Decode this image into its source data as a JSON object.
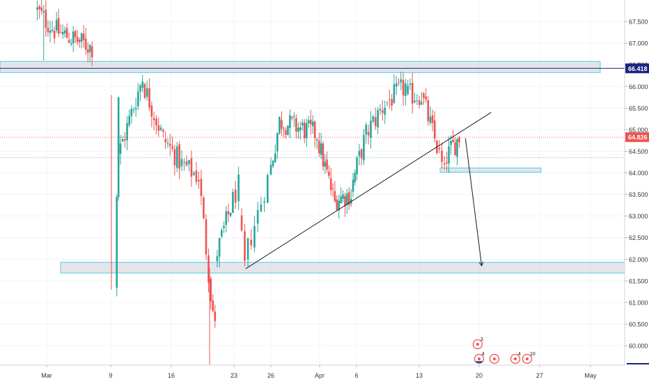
{
  "chart_data": {
    "type": "candlestick",
    "symbol_price_tags": {
      "resistance_level": "66.418",
      "last_price": "64.826"
    },
    "y_axis": {
      "ylim": [
        59.55,
        68.0
      ],
      "ticks": [
        "67.500",
        "67.000",
        "66.500",
        "66.000",
        "65.500",
        "65.000",
        "64.500",
        "64.000",
        "63.500",
        "63.000",
        "62.500",
        "62.000",
        "61.500",
        "61.000",
        "60.500",
        "60.000"
      ]
    },
    "x_axis": {
      "labels": [
        "Mar",
        "9",
        "16",
        "23",
        "26",
        "Apr",
        "6",
        "13",
        "20",
        "27",
        "May"
      ]
    },
    "levels": {
      "resistance_zone": [
        66.32,
        66.58
      ],
      "resistance_line": 66.418,
      "support_zone_small": [
        64.02,
        64.08
      ],
      "support_zone_big": [
        61.68,
        61.93
      ],
      "last_price_line": 64.826,
      "dotted_line": 64.35
    },
    "annotations": {
      "trendline": {
        "from": {
          "day": 22.95,
          "price": 61.78
        },
        "to": {
          "day": 51.4,
          "price": 65.4
        }
      },
      "arrow": {
        "from": {
          "day": 48.4,
          "price": 64.8
        },
        "to": {
          "day": 50.3,
          "price": 61.85
        }
      }
    },
    "event_markers": {
      "labels": [
        "3",
        "4",
        "4",
        "10"
      ]
    },
    "series": {
      "segments": [
        {
          "start_day": -1.3,
          "end_day": 1.1,
          "start": 67.8,
          "end": 67.3,
          "low_spike": 66.6,
          "low_idx": 0.4
        },
        {
          "start_day": 1.1,
          "end_day": 5.8,
          "start": 67.3,
          "end": 66.9
        },
        {
          "start_day": 8.6,
          "end_day": 9.0,
          "start": 61.3,
          "end": 65.8
        },
        {
          "start_day": 9.0,
          "end_day": 11.8,
          "start": 64.4,
          "end": 66.2
        },
        {
          "start_day": 11.8,
          "end_day": 14.2,
          "start": 66.1,
          "end": 64.8
        },
        {
          "start_day": 14.2,
          "end_day": 16.3,
          "start": 64.8,
          "end": 64.2
        },
        {
          "start_day": 16.3,
          "end_day": 18.2,
          "start": 64.2,
          "end": 63.9
        },
        {
          "start_day": 18.2,
          "end_day": 19.3,
          "start": 63.9,
          "end": 61.7
        },
        {
          "start_day": 19.3,
          "end_day": 20.0,
          "start": 61.6,
          "end": 60.4
        },
        {
          "start_day": 20.0,
          "end_day": 22.5,
          "start": 62.0,
          "end": 63.7
        },
        {
          "start_day": 22.5,
          "end_day": 23.0,
          "start": 63.0,
          "end": 61.8
        },
        {
          "start_day": 23.0,
          "end_day": 26.2,
          "start": 62.0,
          "end": 65.2
        },
        {
          "start_day": 26.2,
          "end_day": 30.8,
          "start": 65.2,
          "end": 64.9
        },
        {
          "start_day": 30.8,
          "end_day": 33.2,
          "start": 64.8,
          "end": 63.3
        },
        {
          "start_day": 33.2,
          "end_day": 35.4,
          "start": 63.4,
          "end": 63.5
        },
        {
          "start_day": 35.4,
          "end_day": 37.2,
          "start": 63.6,
          "end": 64.9
        },
        {
          "start_day": 37.2,
          "end_day": 39.3,
          "start": 64.9,
          "end": 65.6
        },
        {
          "start_day": 39.3,
          "end_day": 41.6,
          "start": 65.6,
          "end": 66.0
        },
        {
          "start_day": 41.6,
          "end_day": 43.4,
          "start": 65.8,
          "end": 65.8
        },
        {
          "start_day": 43.4,
          "end_day": 45.2,
          "start": 65.8,
          "end": 64.6
        },
        {
          "start_day": 45.2,
          "end_day": 46.1,
          "start": 64.6,
          "end": 63.95
        },
        {
          "start_day": 46.1,
          "end_day": 47.8,
          "start": 64.3,
          "end": 64.83
        }
      ]
    }
  }
}
